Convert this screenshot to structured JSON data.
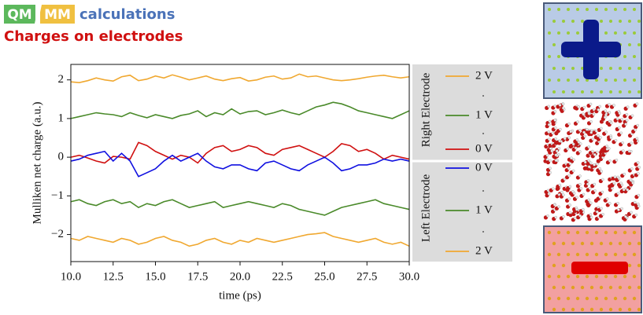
{
  "header": {
    "tags": [
      "QM",
      "MM"
    ],
    "title": "calculations",
    "subtitle": "Charges on electrodes"
  },
  "chart_data": {
    "type": "line",
    "x_label": "time (ps)",
    "y_label": "Mulliken net charge (a.u.)",
    "x": [
      10,
      10.5,
      11,
      11.5,
      12,
      12.5,
      13,
      13.5,
      14,
      14.5,
      15,
      15.5,
      16,
      16.5,
      17,
      17.5,
      18,
      18.5,
      19,
      19.5,
      20,
      20.5,
      21,
      21.5,
      22,
      22.5,
      23,
      23.5,
      24,
      24.5,
      25,
      25.5,
      26,
      26.5,
      27,
      27.5,
      28,
      28.5,
      29,
      29.5,
      30
    ],
    "xlim": [
      10,
      30
    ],
    "xticks": [
      {
        "value": 10,
        "label": "10.0"
      },
      {
        "value": 12.5,
        "label": "12.5"
      },
      {
        "value": 15,
        "label": "15.0"
      },
      {
        "value": 17.5,
        "label": "17.5"
      },
      {
        "value": 20,
        "label": "20.0"
      },
      {
        "value": 22.5,
        "label": "22.5"
      },
      {
        "value": 25,
        "label": "25.0"
      },
      {
        "value": 27.5,
        "label": "27.5"
      },
      {
        "value": 30,
        "label": "30.0"
      }
    ],
    "ylim": [
      -2.7,
      2.4
    ],
    "yticks": [
      {
        "value": -2,
        "label": "−2"
      },
      {
        "value": -1,
        "label": "−1"
      },
      0,
      1,
      2
    ],
    "grid": false,
    "series_groups": [
      {
        "name": "Right Electrode",
        "series": [
          {
            "name": "2 V",
            "color": "#f0a830",
            "values": [
              1.95,
              1.93,
              1.98,
              2.05,
              2.0,
              1.97,
              2.08,
              2.12,
              1.98,
              2.02,
              2.1,
              2.05,
              2.13,
              2.07,
              2.0,
              2.05,
              2.1,
              2.02,
              1.98,
              2.03,
              2.06,
              1.97,
              2.0,
              2.07,
              2.1,
              2.02,
              2.05,
              2.15,
              2.08,
              2.1,
              2.05,
              2.0,
              1.98,
              2.0,
              2.03,
              2.07,
              2.1,
              2.12,
              2.08,
              2.05,
              2.08
            ]
          },
          {
            "name": "1 V",
            "color": "#4a8a2a",
            "values": [
              1.0,
              1.05,
              1.1,
              1.15,
              1.12,
              1.1,
              1.05,
              1.15,
              1.08,
              1.02,
              1.1,
              1.05,
              1.0,
              1.08,
              1.12,
              1.2,
              1.05,
              1.15,
              1.1,
              1.25,
              1.12,
              1.18,
              1.2,
              1.1,
              1.15,
              1.22,
              1.15,
              1.1,
              1.2,
              1.3,
              1.35,
              1.42,
              1.38,
              1.3,
              1.2,
              1.15,
              1.1,
              1.05,
              1.0,
              1.1,
              1.2
            ]
          },
          {
            "name": "0 V",
            "color": "#d01010",
            "values": [
              0.0,
              0.05,
              -0.02,
              -0.1,
              -0.15,
              0.02,
              0.0,
              -0.05,
              0.38,
              0.3,
              0.15,
              0.05,
              -0.05,
              0.05,
              0.0,
              -0.15,
              0.1,
              0.25,
              0.3,
              0.15,
              0.2,
              0.3,
              0.25,
              0.1,
              0.05,
              0.2,
              0.25,
              0.3,
              0.2,
              0.1,
              0.0,
              0.15,
              0.35,
              0.3,
              0.15,
              0.2,
              0.1,
              -0.05,
              0.05,
              0.0,
              -0.05
            ]
          }
        ]
      },
      {
        "name": "Left Electrode",
        "series": [
          {
            "name": "0 V",
            "color": "#1010e0",
            "values": [
              -0.1,
              -0.05,
              0.05,
              0.1,
              0.15,
              -0.1,
              0.1,
              -0.1,
              -0.5,
              -0.4,
              -0.3,
              -0.1,
              0.05,
              -0.1,
              0.0,
              0.1,
              -0.1,
              -0.25,
              -0.3,
              -0.2,
              -0.2,
              -0.3,
              -0.35,
              -0.15,
              -0.1,
              -0.2,
              -0.3,
              -0.35,
              -0.2,
              -0.1,
              0.0,
              -0.15,
              -0.35,
              -0.3,
              -0.2,
              -0.2,
              -0.15,
              -0.05,
              -0.1,
              -0.05,
              -0.1
            ]
          },
          {
            "name": "1 V",
            "color": "#4a8a2a",
            "values": [
              -1.15,
              -1.1,
              -1.2,
              -1.25,
              -1.15,
              -1.1,
              -1.2,
              -1.15,
              -1.3,
              -1.2,
              -1.25,
              -1.15,
              -1.1,
              -1.2,
              -1.3,
              -1.25,
              -1.2,
              -1.15,
              -1.3,
              -1.25,
              -1.2,
              -1.15,
              -1.2,
              -1.25,
              -1.3,
              -1.2,
              -1.25,
              -1.35,
              -1.4,
              -1.45,
              -1.5,
              -1.4,
              -1.3,
              -1.25,
              -1.2,
              -1.15,
              -1.1,
              -1.2,
              -1.25,
              -1.3,
              -1.35
            ]
          },
          {
            "name": "2 V",
            "color": "#f0a830",
            "values": [
              -2.1,
              -2.15,
              -2.05,
              -2.1,
              -2.15,
              -2.2,
              -2.1,
              -2.15,
              -2.25,
              -2.2,
              -2.1,
              -2.05,
              -2.15,
              -2.2,
              -2.3,
              -2.25,
              -2.15,
              -2.1,
              -2.2,
              -2.25,
              -2.15,
              -2.2,
              -2.1,
              -2.15,
              -2.2,
              -2.15,
              -2.1,
              -2.05,
              -2.0,
              -1.98,
              -1.95,
              -2.05,
              -2.1,
              -2.15,
              -2.2,
              -2.15,
              -2.1,
              -2.2,
              -2.25,
              -2.2,
              -2.3
            ]
          }
        ]
      }
    ]
  }
}
